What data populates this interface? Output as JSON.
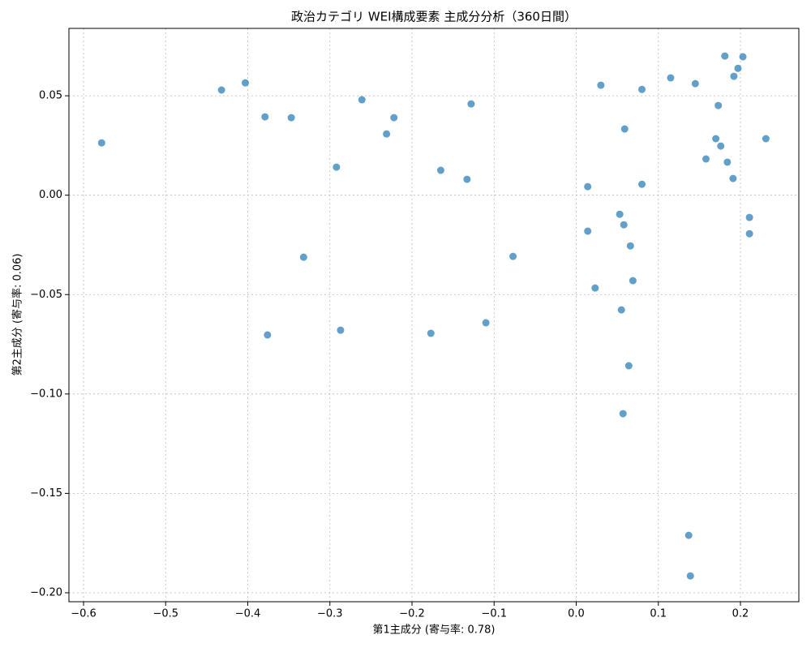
{
  "chart_data": {
    "type": "scatter",
    "title": "政治カテゴリ WEI構成要素 主成分分析（360日間）",
    "x_label": "第1主成分 (寄与率: 0.78)",
    "y_label": "第2主成分 (寄与率: 0.06)",
    "color": "#1f77b4",
    "grid": true,
    "xlim": [
      -0.6178,
      0.2711
    ],
    "ylim": [
      -0.2045,
      0.0839
    ],
    "xticks": [
      {
        "value": -0.6,
        "label": "−0.6"
      },
      {
        "value": -0.5,
        "label": "−0.5"
      },
      {
        "value": -0.4,
        "label": "−0.4"
      },
      {
        "value": -0.3,
        "label": "−0.3"
      },
      {
        "value": -0.2,
        "label": "−0.2"
      },
      {
        "value": -0.1,
        "label": "−0.1"
      },
      {
        "value": 0,
        "label": "0.0"
      },
      0.1,
      0.2
    ],
    "yticks": [
      {
        "value": -0.2,
        "label": "−0.20"
      },
      {
        "value": -0.15,
        "label": "−0.15"
      },
      {
        "value": -0.1,
        "label": "−0.10"
      },
      {
        "value": -0.05,
        "label": "−0.05"
      },
      {
        "value": 0,
        "label": "0.00"
      },
      0.05
    ],
    "x": [
      -0.578,
      -0.432,
      -0.403,
      -0.379,
      -0.347,
      -0.261,
      -0.222,
      -0.231,
      -0.128,
      -0.292,
      -0.165,
      -0.133,
      -0.332,
      -0.077,
      -0.376,
      -0.287,
      -0.177,
      -0.11,
      0.03,
      0.08,
      0.115,
      0.145,
      0.059,
      0.014,
      0.08,
      0.181,
      0.203,
      0.197,
      0.192,
      0.173,
      0.17,
      0.176,
      0.158,
      0.184,
      0.191,
      0.231,
      0.053,
      0.058,
      0.014,
      0.066,
      0.211,
      0.211,
      0.023,
      0.069,
      0.055,
      0.064,
      0.057,
      0.137,
      0.139
    ],
    "values": [
      0.0263,
      0.0529,
      0.0565,
      0.0394,
      0.039,
      0.048,
      0.039,
      0.0308,
      0.0459,
      0.0141,
      0.0125,
      0.008,
      -0.0312,
      -0.0308,
      -0.0703,
      -0.0679,
      -0.0695,
      -0.0642,
      0.0553,
      0.0532,
      0.059,
      0.0561,
      0.0333,
      0.0043,
      0.0055,
      0.07,
      0.0696,
      0.0638,
      0.0598,
      0.0451,
      0.0284,
      0.0247,
      0.0182,
      0.0166,
      0.0084,
      0.0284,
      -0.0096,
      -0.0149,
      -0.0181,
      -0.0255,
      -0.0112,
      -0.0194,
      -0.0467,
      -0.043,
      -0.0577,
      -0.0858,
      -0.1099,
      -0.1711,
      -0.1915
    ]
  }
}
